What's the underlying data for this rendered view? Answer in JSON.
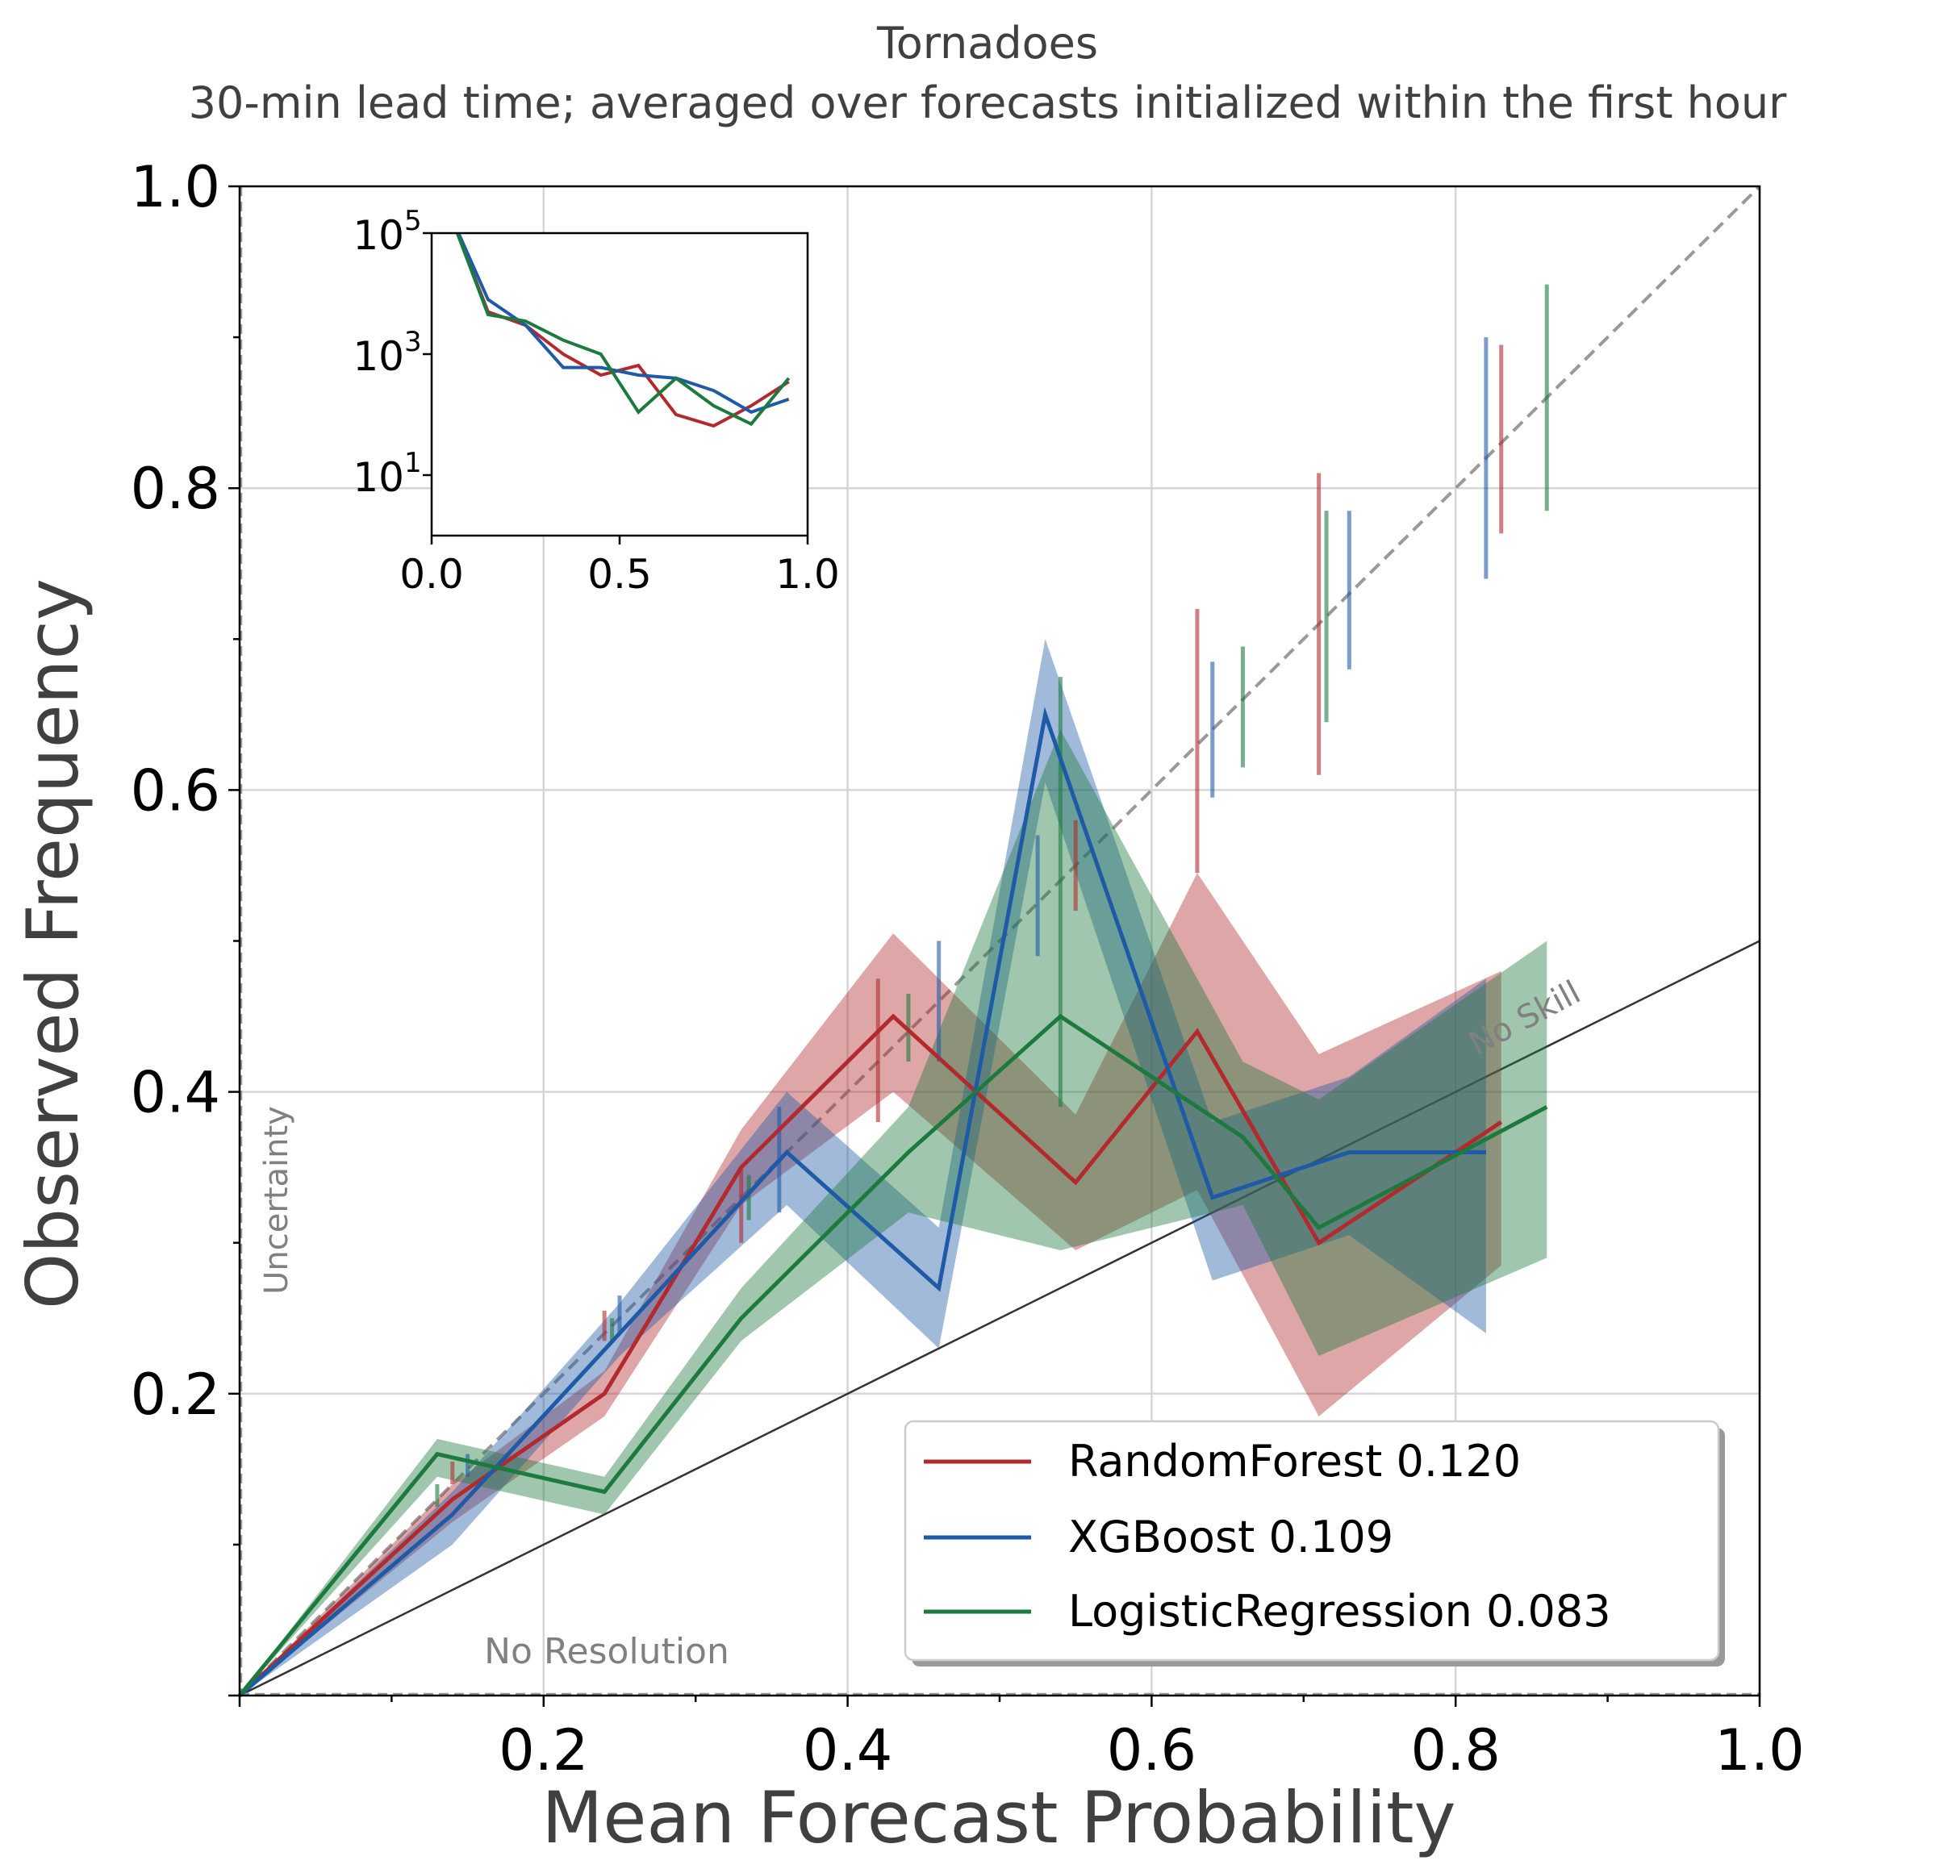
{
  "chart_data": {
    "type": "line",
    "title": "Tornadoes",
    "subtitle": "30-min lead time; averaged over forecasts initialized within the first hour",
    "xlabel": "Mean Forecast Probability",
    "ylabel": "Observed Frequency",
    "xlim": [
      0,
      1
    ],
    "ylim": [
      0,
      1
    ],
    "x_ticks": [
      "0.2",
      "0.4",
      "0.6",
      "0.8",
      "1.0"
    ],
    "y_ticks": [
      "0.2",
      "0.4",
      "0.6",
      "0.8",
      "1.0"
    ],
    "grid": true,
    "legend_position": "lower-right",
    "reference_labels": {
      "no_skill": "No Skill",
      "no_resolution": "No Resolution",
      "uncertainty": "Uncertainty"
    },
    "series": [
      {
        "name": "RandomForest",
        "score": "0.120",
        "color": "#b22a2e",
        "x": [
          0,
          0.14,
          0.24,
          0.33,
          0.43,
          0.55,
          0.63,
          0.71,
          0.83
        ],
        "y": [
          0,
          0.13,
          0.2,
          0.35,
          0.45,
          0.34,
          0.44,
          0.3,
          0.38
        ],
        "lower": [
          0,
          0.115,
          0.185,
          0.325,
          0.4,
          0.295,
          0.335,
          0.185,
          0.285
        ],
        "upper": [
          0,
          0.14,
          0.215,
          0.375,
          0.505,
          0.385,
          0.545,
          0.425,
          0.48
        ]
      },
      {
        "name": "XGBoost",
        "score": "0.109",
        "color": "#1f5aa6",
        "x": [
          0,
          0.14,
          0.25,
          0.36,
          0.46,
          0.53,
          0.64,
          0.73,
          0.82
        ],
        "y": [
          0,
          0.12,
          0.24,
          0.36,
          0.27,
          0.65,
          0.33,
          0.36,
          0.36
        ],
        "lower": [
          0,
          0.1,
          0.225,
          0.325,
          0.23,
          0.605,
          0.275,
          0.305,
          0.24
        ],
        "upper": [
          0,
          0.135,
          0.26,
          0.4,
          0.31,
          0.7,
          0.38,
          0.41,
          0.475
        ]
      },
      {
        "name": "LogisticRegression",
        "score": "0.083",
        "color": "#1d7a3f",
        "x": [
          0,
          0.13,
          0.24,
          0.33,
          0.44,
          0.54,
          0.66,
          0.71,
          0.86
        ],
        "y": [
          0,
          0.16,
          0.135,
          0.25,
          0.36,
          0.45,
          0.37,
          0.31,
          0.39
        ],
        "lower": [
          0,
          0.145,
          0.12,
          0.235,
          0.32,
          0.295,
          0.325,
          0.225,
          0.29
        ],
        "upper": [
          0,
          0.17,
          0.145,
          0.27,
          0.39,
          0.64,
          0.42,
          0.395,
          0.5
        ]
      }
    ],
    "error_bars": [
      {
        "series": "RandomForest",
        "x": 0.14,
        "lower": 0.14,
        "upper": 0.155
      },
      {
        "series": "RandomForest",
        "x": 0.24,
        "lower": 0.235,
        "upper": 0.255
      },
      {
        "series": "RandomForest",
        "x": 0.33,
        "lower": 0.3,
        "upper": 0.35
      },
      {
        "series": "RandomForest",
        "x": 0.42,
        "lower": 0.38,
        "upper": 0.475
      },
      {
        "series": "RandomForest",
        "x": 0.55,
        "lower": 0.52,
        "upper": 0.58
      },
      {
        "series": "RandomForest",
        "x": 0.63,
        "lower": 0.545,
        "upper": 0.72
      },
      {
        "series": "RandomForest",
        "x": 0.71,
        "lower": 0.61,
        "upper": 0.81
      },
      {
        "series": "RandomForest",
        "x": 0.83,
        "lower": 0.77,
        "upper": 0.895
      },
      {
        "series": "XGBoost",
        "x": 0.15,
        "lower": 0.145,
        "upper": 0.16
      },
      {
        "series": "XGBoost",
        "x": 0.25,
        "lower": 0.24,
        "upper": 0.265
      },
      {
        "series": "XGBoost",
        "x": 0.355,
        "lower": 0.32,
        "upper": 0.39
      },
      {
        "series": "XGBoost",
        "x": 0.46,
        "lower": 0.42,
        "upper": 0.5
      },
      {
        "series": "XGBoost",
        "x": 0.525,
        "lower": 0.49,
        "upper": 0.57
      },
      {
        "series": "XGBoost",
        "x": 0.64,
        "lower": 0.595,
        "upper": 0.685
      },
      {
        "series": "XGBoost",
        "x": 0.73,
        "lower": 0.68,
        "upper": 0.785
      },
      {
        "series": "XGBoost",
        "x": 0.82,
        "lower": 0.74,
        "upper": 0.9
      },
      {
        "series": "LogisticRegression",
        "x": 0.13,
        "lower": 0.125,
        "upper": 0.14
      },
      {
        "series": "LogisticRegression",
        "x": 0.245,
        "lower": 0.235,
        "upper": 0.25
      },
      {
        "series": "LogisticRegression",
        "x": 0.335,
        "lower": 0.315,
        "upper": 0.345
      },
      {
        "series": "LogisticRegression",
        "x": 0.44,
        "lower": 0.42,
        "upper": 0.465
      },
      {
        "series": "LogisticRegression",
        "x": 0.54,
        "lower": 0.39,
        "upper": 0.675
      },
      {
        "series": "LogisticRegression",
        "x": 0.66,
        "lower": 0.615,
        "upper": 0.695
      },
      {
        "series": "LogisticRegression",
        "x": 0.715,
        "lower": 0.645,
        "upper": 0.785
      },
      {
        "series": "LogisticRegression",
        "x": 0.86,
        "lower": 0.785,
        "upper": 0.935
      }
    ],
    "inset": {
      "type": "line",
      "yscale": "log",
      "xlim": [
        0,
        1
      ],
      "ylim": [
        1,
        100000
      ],
      "x_ticks": [
        "0.0",
        "0.5",
        "1.0"
      ],
      "y_ticks": [
        "10",
        "10",
        "10"
      ],
      "y_tick_exponents": [
        "5",
        "3",
        "1"
      ],
      "series": [
        {
          "name": "RandomForest",
          "x": [
            0.05,
            0.15,
            0.25,
            0.35,
            0.45,
            0.55,
            0.65,
            0.75,
            0.85,
            0.95
          ],
          "y": [
            200000,
            5000,
            3000,
            1000,
            450,
            650,
            100,
            65,
            140,
            350
          ]
        },
        {
          "name": "XGBoost",
          "x": [
            0.05,
            0.15,
            0.25,
            0.35,
            0.45,
            0.55,
            0.65,
            0.75,
            0.85,
            0.95
          ],
          "y": [
            200000,
            8000,
            3000,
            600,
            600,
            450,
            400,
            250,
            110,
            180
          ]
        },
        {
          "name": "LogisticRegression",
          "x": [
            0.05,
            0.15,
            0.25,
            0.35,
            0.45,
            0.55,
            0.65,
            0.75,
            0.85,
            0.95
          ],
          "y": [
            200000,
            4500,
            3500,
            1700,
            1000,
            110,
            400,
            140,
            70,
            400
          ]
        }
      ]
    }
  }
}
